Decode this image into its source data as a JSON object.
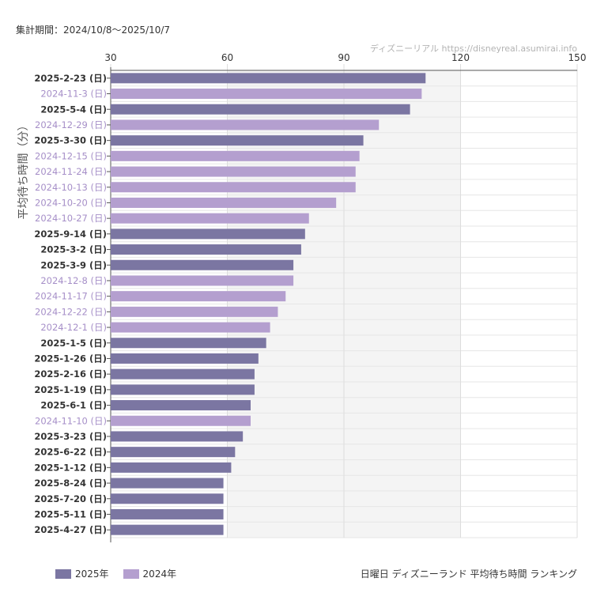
{
  "header": {
    "period": "集計期間：2024/10/8〜2025/10/7",
    "credit": "ディズニーリアル  https://disneyreal.asumirai.info"
  },
  "footer": {
    "title": "日曜日 ディズニーランド 平均待ち時間 ランキング"
  },
  "colors": {
    "series_2025": "#7b76a2",
    "series_2024": "#b49fcf",
    "shade": "#f4f4f4"
  },
  "chart_data": {
    "type": "bar",
    "orientation": "horizontal",
    "ylabel": "平均待ち時間（分）",
    "xlim": [
      30,
      150
    ],
    "xticks": [
      30,
      60,
      90,
      120,
      150
    ],
    "shaded_range": [
      60,
      120
    ],
    "grid": true,
    "legend_position": "bottom-left",
    "series": [
      {
        "name": "2025年",
        "color": "#7b76a2"
      },
      {
        "name": "2024年",
        "color": "#b49fcf"
      }
    ],
    "bars": [
      {
        "label": "2025-2-23 (日)",
        "value": 111,
        "series": "2025年"
      },
      {
        "label": "2024-11-3 (日)",
        "value": 110,
        "series": "2024年"
      },
      {
        "label": "2025-5-4 (日)",
        "value": 107,
        "series": "2025年"
      },
      {
        "label": "2024-12-29 (日)",
        "value": 99,
        "series": "2024年"
      },
      {
        "label": "2025-3-30 (日)",
        "value": 95,
        "series": "2025年"
      },
      {
        "label": "2024-12-15 (日)",
        "value": 94,
        "series": "2024年"
      },
      {
        "label": "2024-11-24 (日)",
        "value": 93,
        "series": "2024年"
      },
      {
        "label": "2024-10-13 (日)",
        "value": 93,
        "series": "2024年"
      },
      {
        "label": "2024-10-20 (日)",
        "value": 88,
        "series": "2024年"
      },
      {
        "label": "2024-10-27 (日)",
        "value": 81,
        "series": "2024年"
      },
      {
        "label": "2025-9-14 (日)",
        "value": 80,
        "series": "2025年"
      },
      {
        "label": "2025-3-2 (日)",
        "value": 79,
        "series": "2025年"
      },
      {
        "label": "2025-3-9 (日)",
        "value": 77,
        "series": "2025年"
      },
      {
        "label": "2024-12-8 (日)",
        "value": 77,
        "series": "2024年"
      },
      {
        "label": "2024-11-17 (日)",
        "value": 75,
        "series": "2024年"
      },
      {
        "label": "2024-12-22 (日)",
        "value": 73,
        "series": "2024年"
      },
      {
        "label": "2024-12-1 (日)",
        "value": 71,
        "series": "2024年"
      },
      {
        "label": "2025-1-5 (日)",
        "value": 70,
        "series": "2025年"
      },
      {
        "label": "2025-1-26 (日)",
        "value": 68,
        "series": "2025年"
      },
      {
        "label": "2025-2-16 (日)",
        "value": 67,
        "series": "2025年"
      },
      {
        "label": "2025-1-19 (日)",
        "value": 67,
        "series": "2025年"
      },
      {
        "label": "2025-6-1 (日)",
        "value": 66,
        "series": "2025年"
      },
      {
        "label": "2024-11-10 (日)",
        "value": 66,
        "series": "2024年"
      },
      {
        "label": "2025-3-23 (日)",
        "value": 64,
        "series": "2025年"
      },
      {
        "label": "2025-6-22 (日)",
        "value": 62,
        "series": "2025年"
      },
      {
        "label": "2025-1-12 (日)",
        "value": 61,
        "series": "2025年"
      },
      {
        "label": "2025-8-24 (日)",
        "value": 59,
        "series": "2025年"
      },
      {
        "label": "2025-7-20 (日)",
        "value": 59,
        "series": "2025年"
      },
      {
        "label": "2025-5-11 (日)",
        "value": 59,
        "series": "2025年"
      },
      {
        "label": "2025-4-27 (日)",
        "value": 59,
        "series": "2025年"
      }
    ]
  }
}
